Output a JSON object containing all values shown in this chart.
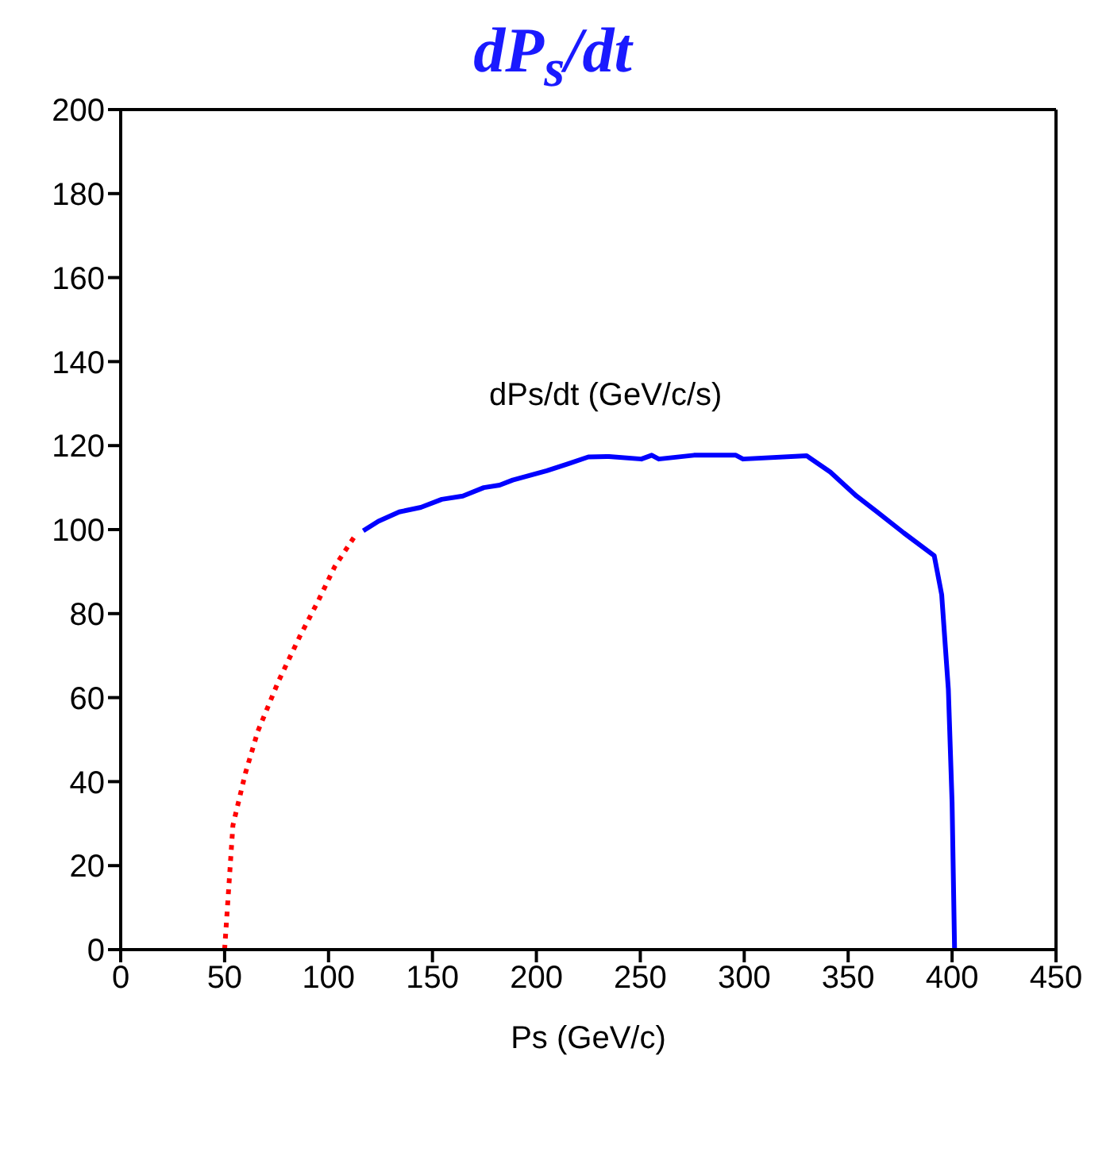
{
  "chart_data": {
    "type": "line",
    "title": "dP$_{s}$/dt",
    "xlabel": "Ps (GeV/c)",
    "annotations": [
      "dPs/dt (GeV/c/s)"
    ],
    "xlim": [
      0,
      450
    ],
    "xticks": [
      0,
      50,
      100,
      150,
      200,
      250,
      300,
      350,
      400,
      450
    ],
    "ylim": [
      0,
      200
    ],
    "yticks": [
      0,
      20,
      40,
      60,
      80,
      100,
      120,
      140,
      160,
      180,
      200
    ],
    "grid": false,
    "legend": false,
    "marker": "none",
    "series": [
      {
        "color": "#ff0000",
        "line_style": "dotted",
        "x": [
          50,
          54,
          60,
          66,
          76,
          86,
          95,
          103,
          112.3
        ],
        "values": [
          0,
          29.6,
          42,
          52,
          64,
          74.4,
          83,
          91.2,
          98.2
        ]
      },
      {
        "color": "#0000ff",
        "line_style": "solid",
        "x": [
          116.7,
          124,
          134,
          144.4,
          154.5,
          164.6,
          174.7,
          182.3,
          188.6,
          205,
          215,
          225,
          235,
          250.5,
          255.5,
          258.9,
          275.8,
          296,
          299.4,
          330,
          341.4,
          354,
          364,
          376.8,
          391.4,
          395,
          398.2,
          400,
          401.2
        ],
        "values": [
          99.7,
          102,
          104.2,
          105.3,
          107.2,
          108,
          110,
          110.6,
          111.8,
          114,
          115.6,
          117.3,
          117.4,
          116.8,
          117.7,
          116.8,
          117.7,
          117.7,
          116.8,
          117.6,
          113.7,
          108,
          104.2,
          99.2,
          93.8,
          84.5,
          62,
          35,
          0
        ]
      }
    ]
  }
}
